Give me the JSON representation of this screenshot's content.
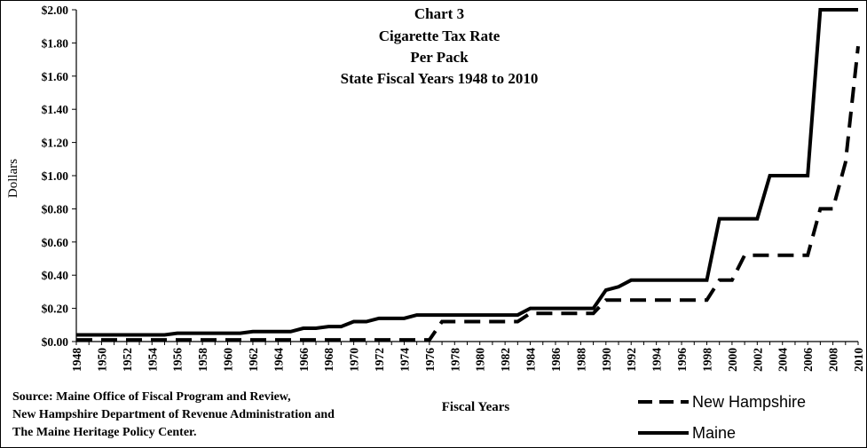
{
  "chart_data": {
    "type": "line",
    "title": [
      "Chart 3",
      "Cigarette Tax Rate",
      "Per Pack",
      "State Fiscal Years 1948 to 2010"
    ],
    "xlabel": "Fiscal Years",
    "ylabel": "Dollars",
    "ylim": [
      0,
      2.0
    ],
    "yticks": [
      "$0.00",
      "$0.20",
      "$0.40",
      "$0.60",
      "$0.80",
      "$1.00",
      "$1.20",
      "$1.40",
      "$1.60",
      "$1.80",
      "$2.00"
    ],
    "x": [
      1948,
      1949,
      1950,
      1951,
      1952,
      1953,
      1954,
      1955,
      1956,
      1957,
      1958,
      1959,
      1960,
      1961,
      1962,
      1963,
      1964,
      1965,
      1966,
      1967,
      1968,
      1969,
      1970,
      1971,
      1972,
      1973,
      1974,
      1975,
      1976,
      1977,
      1978,
      1979,
      1980,
      1981,
      1982,
      1983,
      1984,
      1985,
      1986,
      1987,
      1988,
      1989,
      1990,
      1991,
      1992,
      1993,
      1994,
      1995,
      1996,
      1997,
      1998,
      1999,
      2000,
      2001,
      2002,
      2003,
      2004,
      2005,
      2006,
      2007,
      2008,
      2009,
      2010
    ],
    "xticks": [
      "1948",
      "1950",
      "1952",
      "1954",
      "1956",
      "1958",
      "1960",
      "1962",
      "1964",
      "1966",
      "1968",
      "1970",
      "1972",
      "1974",
      "1976",
      "1978",
      "1980",
      "1982",
      "1984",
      "1986",
      "1988",
      "1990",
      "1992",
      "1994",
      "1996",
      "1998",
      "2000",
      "2002",
      "2004",
      "2006",
      "2008",
      "2010"
    ],
    "series": [
      {
        "name": "Maine",
        "style": "solid",
        "values": [
          0.04,
          0.04,
          0.04,
          0.04,
          0.04,
          0.04,
          0.04,
          0.04,
          0.05,
          0.05,
          0.05,
          0.05,
          0.05,
          0.05,
          0.06,
          0.06,
          0.06,
          0.06,
          0.08,
          0.08,
          0.09,
          0.09,
          0.12,
          0.12,
          0.14,
          0.14,
          0.14,
          0.16,
          0.16,
          0.16,
          0.16,
          0.16,
          0.16,
          0.16,
          0.16,
          0.16,
          0.2,
          0.2,
          0.2,
          0.2,
          0.2,
          0.2,
          0.31,
          0.33,
          0.37,
          0.37,
          0.37,
          0.37,
          0.37,
          0.37,
          0.37,
          0.74,
          0.74,
          0.74,
          0.74,
          1.0,
          1.0,
          1.0,
          1.0,
          2.0,
          2.0,
          2.0,
          2.0
        ]
      },
      {
        "name": "New Hampshire",
        "style": "dashed",
        "values": [
          0.01,
          0.01,
          0.01,
          0.01,
          0.01,
          0.01,
          0.01,
          0.01,
          0.01,
          0.01,
          0.01,
          0.01,
          0.01,
          0.01,
          0.01,
          0.01,
          0.01,
          0.01,
          0.01,
          0.01,
          0.01,
          0.01,
          0.01,
          0.01,
          0.01,
          0.01,
          0.01,
          0.01,
          0.01,
          0.12,
          0.12,
          0.12,
          0.12,
          0.12,
          0.12,
          0.12,
          0.17,
          0.17,
          0.17,
          0.17,
          0.17,
          0.17,
          0.25,
          0.25,
          0.25,
          0.25,
          0.25,
          0.25,
          0.25,
          0.25,
          0.25,
          0.37,
          0.37,
          0.52,
          0.52,
          0.52,
          0.52,
          0.52,
          0.52,
          0.8,
          0.8,
          1.08,
          1.78
        ]
      }
    ],
    "source": [
      "Source: Maine Office of Fiscal Program and Review,",
      "New Hampshire Department of Revenue Administration and",
      "The Maine Heritage Policy Center."
    ],
    "legend_position": "bottom-right",
    "grid": false
  }
}
